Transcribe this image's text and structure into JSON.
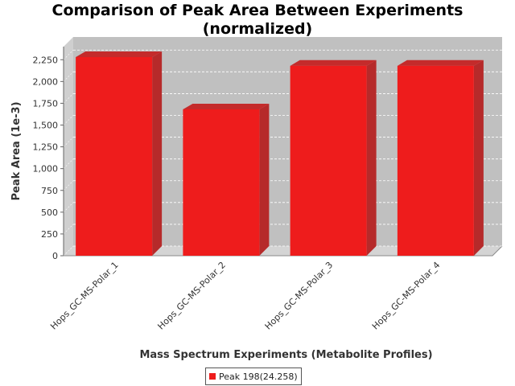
{
  "chart_data": {
    "type": "bar",
    "title": "Comparison of Peak Area Between Experiments",
    "subtitle": "(normalized)",
    "xlabel": "Mass Spectrum Experiments (Metabolite Profiles)",
    "ylabel": "Peak Area (1e-3)",
    "categories": [
      "Hops_GC-MS-Polar_1",
      "Hops_GC-MS-Polar_2",
      "Hops_GC-MS-Polar_3",
      "Hops_GC-MS-Polar_4"
    ],
    "series": [
      {
        "name": "Peak 198(24.258)",
        "values": [
          2280,
          1680,
          2180,
          2180
        ],
        "color": "#ee1c1c"
      }
    ],
    "ylim": [
      0,
      2400
    ],
    "yticks": [
      0,
      250,
      500,
      750,
      1000,
      1250,
      1500,
      1750,
      2000,
      2250
    ],
    "ytick_labels": [
      "0",
      "250",
      "500",
      "750",
      "1,000",
      "1,250",
      "1,500",
      "1,750",
      "2,000",
      "2,250"
    ],
    "grid": true,
    "legend_position": "bottom",
    "colors": {
      "plot_background": "#c0c0c0",
      "floor": "#d4d4d4",
      "bar": "#ee1c1c"
    }
  }
}
